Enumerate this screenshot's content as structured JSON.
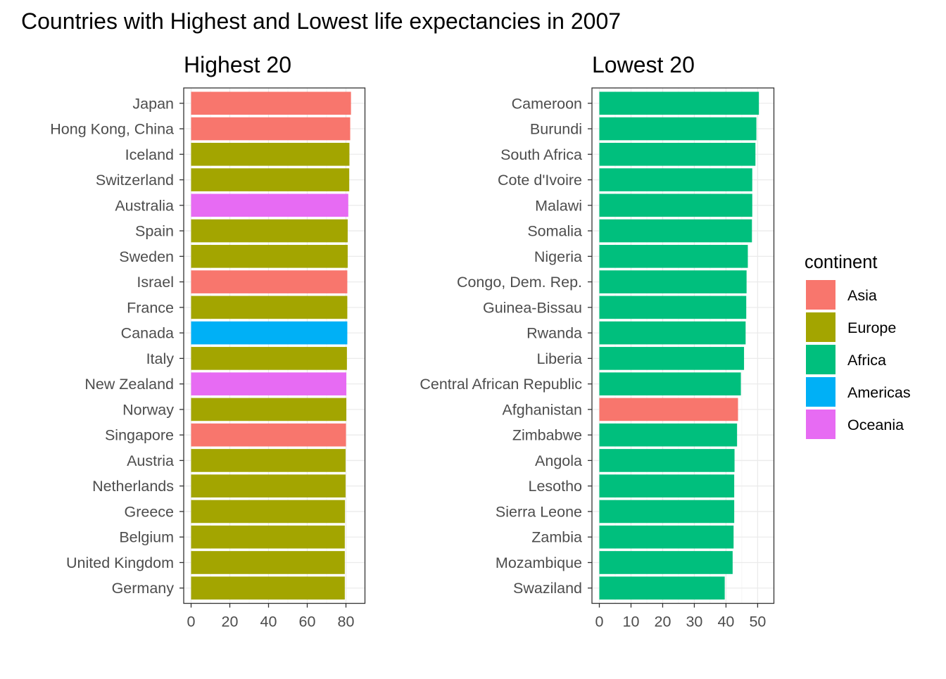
{
  "title": "Countries with Highest and Lowest life expectancies in 2007",
  "legend": {
    "title": "continent",
    "items": [
      {
        "label": "Asia",
        "color": "#F8766D"
      },
      {
        "label": "Europe",
        "color": "#A3A500"
      },
      {
        "label": "Africa",
        "color": "#00BF7D"
      },
      {
        "label": "Americas",
        "color": "#00B0F6"
      },
      {
        "label": "Oceania",
        "color": "#E76BF3"
      }
    ]
  },
  "chart_data": [
    {
      "type": "bar",
      "orientation": "horizontal",
      "title": "Highest 20",
      "xlabel": "",
      "ylabel": "",
      "xlim": [
        0,
        86
      ],
      "xticks": [
        0,
        20,
        40,
        60,
        80
      ],
      "grid": true,
      "legend": "right",
      "categories": [
        "Japan",
        "Hong Kong, China",
        "Iceland",
        "Switzerland",
        "Australia",
        "Spain",
        "Sweden",
        "Israel",
        "France",
        "Canada",
        "Italy",
        "New Zealand",
        "Norway",
        "Singapore",
        "Austria",
        "Netherlands",
        "Greece",
        "Belgium",
        "United Kingdom",
        "Germany"
      ],
      "values": [
        82.6,
        82.2,
        81.8,
        81.7,
        81.2,
        80.9,
        80.9,
        80.7,
        80.7,
        80.7,
        80.5,
        80.2,
        80.2,
        80.0,
        79.8,
        79.8,
        79.5,
        79.4,
        79.4,
        79.4
      ],
      "continents": [
        "Asia",
        "Asia",
        "Europe",
        "Europe",
        "Oceania",
        "Europe",
        "Europe",
        "Asia",
        "Europe",
        "Americas",
        "Europe",
        "Oceania",
        "Europe",
        "Asia",
        "Europe",
        "Europe",
        "Europe",
        "Europe",
        "Europe",
        "Europe"
      ]
    },
    {
      "type": "bar",
      "orientation": "horizontal",
      "title": "Lowest 20",
      "xlabel": "",
      "ylabel": "",
      "xlim": [
        0,
        52.8
      ],
      "xticks": [
        0,
        10,
        20,
        30,
        40,
        50
      ],
      "grid": true,
      "legend": "right",
      "categories": [
        "Cameroon",
        "Burundi",
        "South Africa",
        "Cote d'Ivoire",
        "Malawi",
        "Somalia",
        "Nigeria",
        "Congo, Dem. Rep.",
        "Guinea-Bissau",
        "Rwanda",
        "Liberia",
        "Central African Republic",
        "Afghanistan",
        "Zimbabwe",
        "Angola",
        "Lesotho",
        "Sierra Leone",
        "Zambia",
        "Mozambique",
        "Swaziland"
      ],
      "values": [
        50.4,
        49.6,
        49.3,
        48.3,
        48.3,
        48.2,
        46.9,
        46.5,
        46.4,
        46.2,
        45.7,
        44.7,
        43.8,
        43.5,
        42.7,
        42.6,
        42.6,
        42.4,
        42.1,
        39.6
      ],
      "continents": [
        "Africa",
        "Africa",
        "Africa",
        "Africa",
        "Africa",
        "Africa",
        "Africa",
        "Africa",
        "Africa",
        "Africa",
        "Africa",
        "Africa",
        "Asia",
        "Africa",
        "Africa",
        "Africa",
        "Africa",
        "Africa",
        "Africa",
        "Africa"
      ]
    }
  ]
}
